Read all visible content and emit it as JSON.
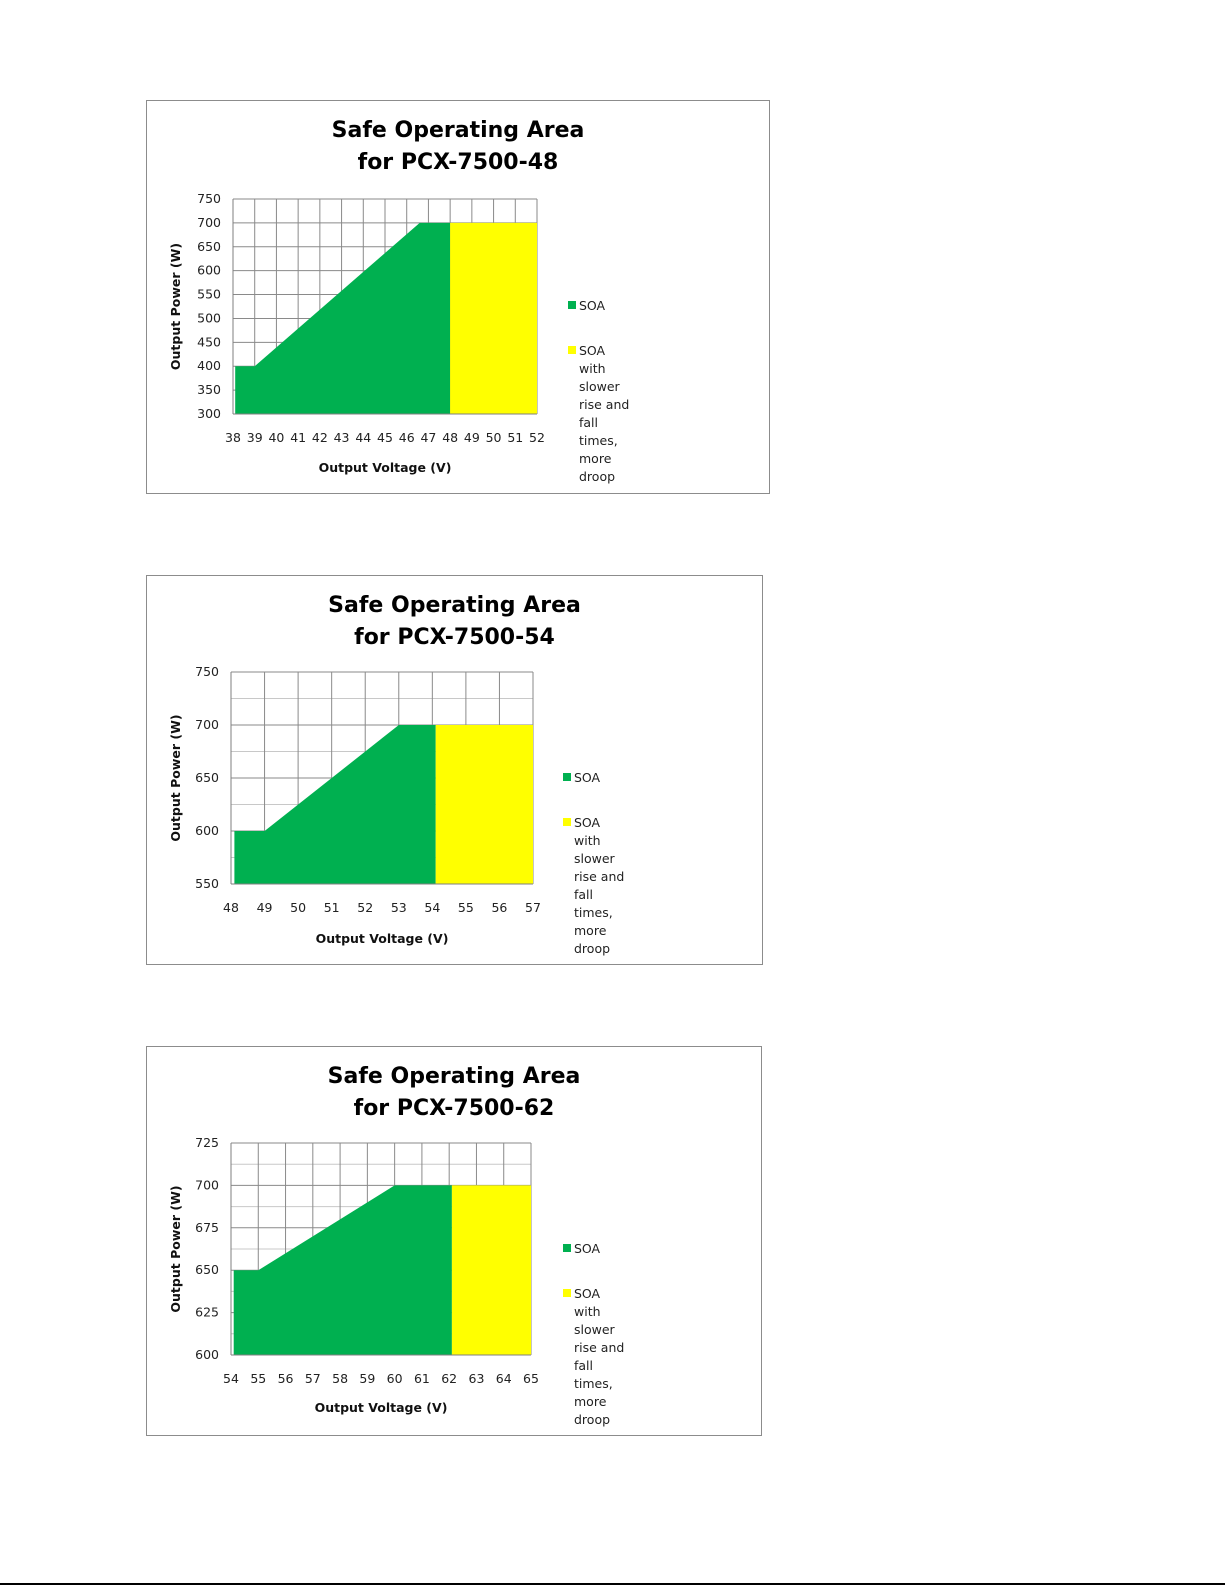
{
  "chart_data": [
    {
      "type": "area",
      "title": [
        "Safe Operating Area",
        "for PCX-7500-48"
      ],
      "xlabel": "Output Voltage  (V)",
      "ylabel": "Output Power  (W)",
      "x_ticks": [
        "38",
        "39",
        "40",
        "41",
        "42",
        "43",
        "44",
        "45",
        "46",
        "47",
        "48",
        "49",
        "50",
        "51",
        "52"
      ],
      "y_ticks": [
        "300",
        "350",
        "400",
        "450",
        "500",
        "550",
        "600",
        "650",
        "700",
        "750"
      ],
      "xlim": [
        38,
        52
      ],
      "ylim": [
        300,
        750
      ],
      "grid": true,
      "legend_position": "right",
      "series": [
        {
          "name": "SOA",
          "color": "#00b050",
          "points": [
            [
              38.1,
              300
            ],
            [
              38.1,
              400
            ],
            [
              39,
              400
            ],
            [
              46.6,
              700
            ],
            [
              48,
              700
            ],
            [
              48,
              300
            ]
          ]
        },
        {
          "name": "SOA with slower rise and fall times, more droop",
          "color": "#ffff00",
          "points": [
            [
              48,
              300
            ],
            [
              48,
              700
            ],
            [
              52,
              700
            ],
            [
              52,
              300
            ]
          ]
        }
      ]
    },
    {
      "type": "area",
      "title": [
        "Safe Operating Area",
        "for PCX-7500-54"
      ],
      "xlabel": "Output Voltage  (V)",
      "ylabel": "Output Power  (W)",
      "x_ticks": [
        "48",
        "49",
        "50",
        "51",
        "52",
        "53",
        "54",
        "55",
        "56",
        "57"
      ],
      "y_ticks": [
        "550",
        "600",
        "650",
        "700",
        "750"
      ],
      "xlim": [
        48,
        57
      ],
      "ylim": [
        550,
        750
      ],
      "grid": true,
      "legend_position": "right",
      "series": [
        {
          "name": "SOA",
          "color": "#00b050",
          "points": [
            [
              48.1,
              550
            ],
            [
              48.1,
              600
            ],
            [
              49,
              600
            ],
            [
              53,
              700
            ],
            [
              54.1,
              700
            ],
            [
              54.1,
              550
            ]
          ]
        },
        {
          "name": "SOA with slower rise and fall times, more droop",
          "color": "#ffff00",
          "points": [
            [
              54.1,
              550
            ],
            [
              54.1,
              700
            ],
            [
              57,
              700
            ],
            [
              57,
              550
            ]
          ]
        }
      ]
    },
    {
      "type": "area",
      "title": [
        "Safe Operating Area",
        "for PCX-7500-62"
      ],
      "xlabel": "Output Voltage  (V)",
      "ylabel": "Output Power  (W)",
      "x_ticks": [
        "54",
        "55",
        "56",
        "57",
        "58",
        "59",
        "60",
        "61",
        "62",
        "63",
        "64",
        "65"
      ],
      "y_ticks": [
        "600",
        "625",
        "650",
        "675",
        "700",
        "725"
      ],
      "xlim": [
        54,
        65
      ],
      "ylim": [
        600,
        725
      ],
      "grid": true,
      "legend_position": "right",
      "series": [
        {
          "name": "SOA",
          "color": "#00b050",
          "points": [
            [
              54.1,
              600
            ],
            [
              54.1,
              650
            ],
            [
              55,
              650
            ],
            [
              60,
              700
            ],
            [
              62.1,
              700
            ],
            [
              62.1,
              600
            ]
          ]
        },
        {
          "name": "SOA with slower rise and fall times, more droop",
          "color": "#ffff00",
          "points": [
            [
              62.1,
              600
            ],
            [
              62.1,
              700
            ],
            [
              65,
              700
            ],
            [
              65,
              600
            ]
          ]
        }
      ]
    }
  ]
}
